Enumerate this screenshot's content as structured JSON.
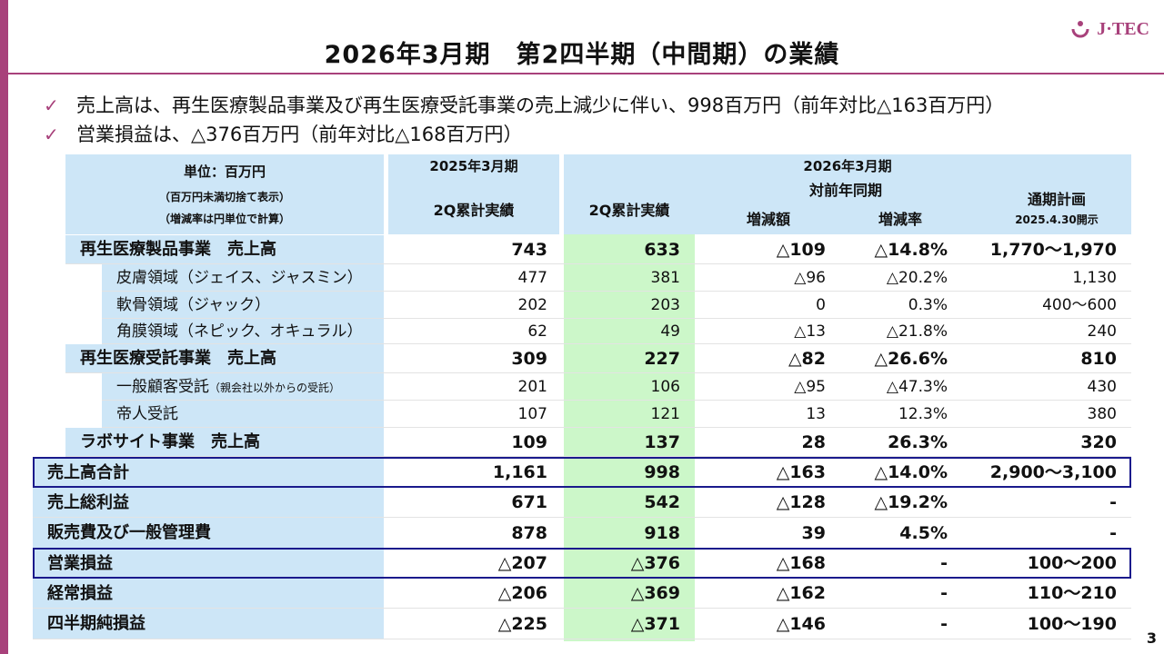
{
  "slide": {
    "title": "2026年3月期　第2四半期（中間期）の業績",
    "page_number": "3",
    "logo_text": "J·TEC",
    "accent_color": "#a8417b",
    "box_color": "#1a1a8c"
  },
  "bullets": [
    "売上高は、再生医療製品事業及び再生医療受託事業の売上減少に伴い、998百万円（前年対比△163百万円）",
    "営業損益は、△376百万円（前年対比△168百万円）"
  ],
  "table": {
    "unit_title": "単位：百万円",
    "unit_note1": "（百万円未満切捨て表示）",
    "unit_note2": "（増減率は円単位で計算）",
    "col_prev_period": "2025年3月期",
    "col_prev_value": "2Q累計実績",
    "col_curr_period": "2026年3月期",
    "col_curr_value": "2Q累計実績",
    "col_yoy": "対前年同期",
    "col_change": "増減額",
    "col_rate": "増減率",
    "col_plan": "通期計画",
    "col_plan_date": "2025.4.30開示",
    "rows": [
      {
        "label": "再生医療製品事業　売上高",
        "note": "",
        "prev": "743",
        "curr": "633",
        "change": "△109",
        "rate": "△14.8%",
        "plan": "1,770～1,970"
      },
      {
        "label": "皮膚領域（ジェイス、ジャスミン）",
        "note": "",
        "prev": "477",
        "curr": "381",
        "change": "△96",
        "rate": "△20.2%",
        "plan": "1,130"
      },
      {
        "label": "軟骨領域（ジャック）",
        "note": "",
        "prev": "202",
        "curr": "203",
        "change": "0",
        "rate": "0.3%",
        "plan": "400～600"
      },
      {
        "label": "角膜領域（ネピック、オキュラル）",
        "note": "",
        "prev": "62",
        "curr": "49",
        "change": "△13",
        "rate": "△21.8%",
        "plan": "240"
      },
      {
        "label": "再生医療受託事業　売上高",
        "note": "",
        "prev": "309",
        "curr": "227",
        "change": "△82",
        "rate": "△26.6%",
        "plan": "810"
      },
      {
        "label": "一般顧客受託",
        "note": "（親会社以外からの受託）",
        "prev": "201",
        "curr": "106",
        "change": "△95",
        "rate": "△47.3%",
        "plan": "430"
      },
      {
        "label": "帝人受託",
        "note": "",
        "prev": "107",
        "curr": "121",
        "change": "13",
        "rate": "12.3%",
        "plan": "380"
      },
      {
        "label": "ラボサイト事業　売上高",
        "note": "",
        "prev": "109",
        "curr": "137",
        "change": "28",
        "rate": "26.3%",
        "plan": "320"
      },
      {
        "label": "売上高合計",
        "note": "",
        "prev": "1,161",
        "curr": "998",
        "change": "△163",
        "rate": "△14.0%",
        "plan": "2,900～3,100"
      },
      {
        "label": "売上総利益",
        "note": "",
        "prev": "671",
        "curr": "542",
        "change": "△128",
        "rate": "△19.2%",
        "plan": "-"
      },
      {
        "label": "販売費及び一般管理費",
        "note": "",
        "prev": "878",
        "curr": "918",
        "change": "39",
        "rate": "4.5%",
        "plan": "-"
      },
      {
        "label": "営業損益",
        "note": "",
        "prev": "△207",
        "curr": "△376",
        "change": "△168",
        "rate": "-",
        "plan": "100～200"
      },
      {
        "label": "経常損益",
        "note": "",
        "prev": "△206",
        "curr": "△369",
        "change": "△162",
        "rate": "-",
        "plan": "110～210"
      },
      {
        "label": "四半期純損益",
        "note": "",
        "prev": "△225",
        "curr": "△371",
        "change": "△146",
        "rate": "-",
        "plan": "100～190"
      }
    ]
  }
}
